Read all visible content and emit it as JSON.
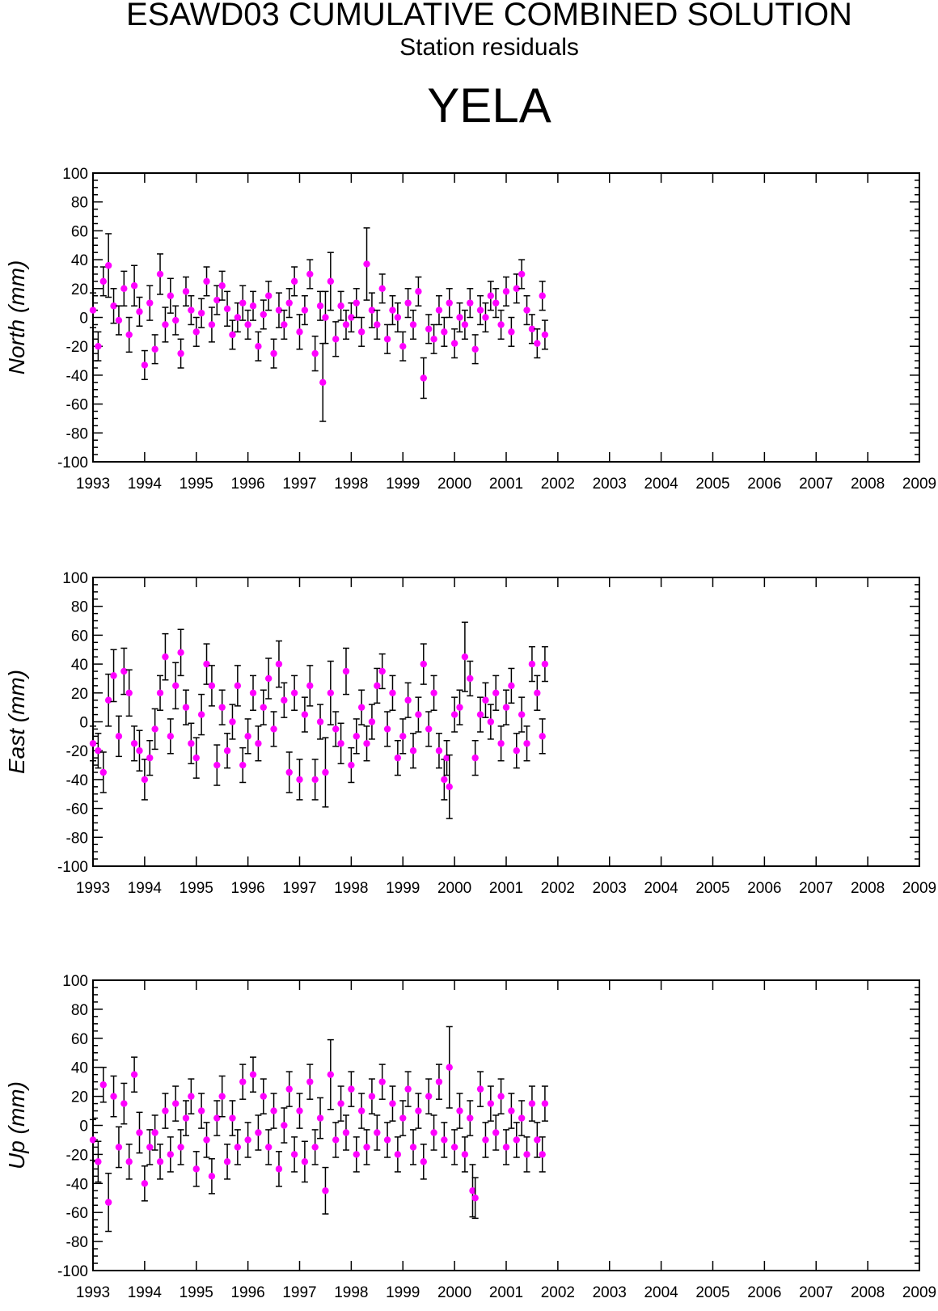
{
  "header": {
    "title": "ESAWD03 CUMULATIVE COMBINED SOLUTION",
    "subtitle": "Station residuals",
    "station": "YELA"
  },
  "chart_data": [
    {
      "type": "scatter",
      "ylabel": "North (mm)",
      "xlim": [
        1993,
        2009
      ],
      "ylim": [
        -100,
        100
      ],
      "x_ticks": [
        "1993",
        "1994",
        "1995",
        "1996",
        "1997",
        "1998",
        "1999",
        "2000",
        "2001",
        "2002",
        "2003",
        "2004",
        "2005",
        "2006",
        "2007",
        "2008",
        "2009"
      ],
      "y_ticks": [
        "100",
        "80",
        "60",
        "40",
        "20",
        "0",
        "-20",
        "-40",
        "-60",
        "-80",
        "-100"
      ],
      "marker_color": "#ff00ff",
      "errorbar_color": "#000000",
      "x": [
        1993.0,
        1993.1,
        1993.2,
        1993.3,
        1993.4,
        1993.5,
        1993.6,
        1993.7,
        1993.8,
        1993.9,
        1994.0,
        1994.1,
        1994.2,
        1994.3,
        1994.4,
        1994.5,
        1994.6,
        1994.7,
        1994.8,
        1994.9,
        1995.0,
        1995.1,
        1995.2,
        1995.3,
        1995.4,
        1995.5,
        1995.6,
        1995.7,
        1995.8,
        1995.9,
        1996.0,
        1996.1,
        1996.2,
        1996.3,
        1996.4,
        1996.5,
        1996.6,
        1996.7,
        1996.8,
        1996.9,
        1997.0,
        1997.1,
        1997.2,
        1997.3,
        1997.4,
        1997.45,
        1997.5,
        1997.6,
        1997.7,
        1997.8,
        1997.9,
        1998.0,
        1998.1,
        1998.2,
        1998.3,
        1998.4,
        1998.5,
        1998.6,
        1998.7,
        1998.8,
        1998.9,
        1999.0,
        1999.1,
        1999.2,
        1999.3,
        1999.4,
        1999.5,
        1999.6,
        1999.7,
        1999.8,
        1999.9,
        2000.0,
        2000.1,
        2000.2,
        2000.3,
        2000.4,
        2000.5,
        2000.6,
        2000.7,
        2000.8,
        2000.9,
        2001.0,
        2001.1,
        2001.2,
        2001.3,
        2001.4,
        2001.5,
        2001.6,
        2001.7,
        2001.75
      ],
      "y": [
        5,
        -20,
        25,
        36,
        8,
        -2,
        20,
        -12,
        22,
        4,
        -33,
        10,
        -22,
        30,
        -5,
        15,
        -2,
        -25,
        18,
        5,
        -10,
        3,
        25,
        -5,
        12,
        22,
        6,
        -12,
        0,
        10,
        -5,
        8,
        -20,
        2,
        15,
        -25,
        5,
        -5,
        10,
        25,
        -10,
        5,
        30,
        -25,
        8,
        -45,
        0,
        25,
        -15,
        8,
        -5,
        0,
        10,
        -10,
        37,
        5,
        -5,
        20,
        -15,
        5,
        0,
        -20,
        10,
        -5,
        18,
        -42,
        -8,
        -15,
        5,
        -10,
        10,
        -18,
        0,
        -5,
        10,
        -22,
        5,
        0,
        15,
        10,
        -5,
        18,
        -10,
        20,
        30,
        5,
        -8,
        -18,
        15,
        -12
      ],
      "y_err": [
        12,
        10,
        10,
        22,
        12,
        10,
        12,
        12,
        14,
        10,
        10,
        12,
        10,
        14,
        12,
        12,
        10,
        10,
        10,
        10,
        10,
        10,
        10,
        12,
        10,
        10,
        12,
        10,
        10,
        12,
        10,
        10,
        10,
        10,
        10,
        10,
        12,
        10,
        10,
        10,
        12,
        10,
        10,
        12,
        10,
        27,
        18,
        20,
        12,
        10,
        10,
        10,
        10,
        10,
        25,
        12,
        10,
        10,
        10,
        10,
        10,
        10,
        10,
        10,
        10,
        14,
        10,
        10,
        10,
        10,
        10,
        10,
        10,
        10,
        10,
        10,
        10,
        10,
        10,
        10,
        10,
        10,
        10,
        10,
        10,
        10,
        10,
        10,
        10,
        10
      ]
    },
    {
      "type": "scatter",
      "ylabel": "East (mm)",
      "xlim": [
        1993,
        2009
      ],
      "ylim": [
        -100,
        100
      ],
      "x_ticks": [
        "1993",
        "1994",
        "1995",
        "1996",
        "1997",
        "1998",
        "1999",
        "2000",
        "2001",
        "2002",
        "2003",
        "2004",
        "2005",
        "2006",
        "2007",
        "2008",
        "2009"
      ],
      "y_ticks": [
        "100",
        "80",
        "60",
        "40",
        "20",
        "0",
        "-20",
        "-40",
        "-60",
        "-80",
        "-100"
      ],
      "marker_color": "#ff00ff",
      "errorbar_color": "#000000",
      "x": [
        1993.0,
        1993.1,
        1993.2,
        1993.3,
        1993.4,
        1993.5,
        1993.6,
        1993.7,
        1993.8,
        1993.9,
        1994.0,
        1994.1,
        1994.2,
        1994.3,
        1994.4,
        1994.5,
        1994.6,
        1994.7,
        1994.8,
        1994.9,
        1995.0,
        1995.1,
        1995.2,
        1995.3,
        1995.4,
        1995.5,
        1995.6,
        1995.7,
        1995.8,
        1995.9,
        1996.0,
        1996.1,
        1996.2,
        1996.3,
        1996.4,
        1996.5,
        1996.6,
        1996.7,
        1996.8,
        1996.9,
        1997.0,
        1997.1,
        1997.2,
        1997.3,
        1997.4,
        1997.5,
        1997.6,
        1997.7,
        1997.8,
        1997.9,
        1998.0,
        1998.1,
        1998.2,
        1998.3,
        1998.4,
        1998.5,
        1998.6,
        1998.7,
        1998.8,
        1998.9,
        1999.0,
        1999.1,
        1999.2,
        1999.3,
        1999.4,
        1999.5,
        1999.6,
        1999.7,
        1999.8,
        1999.85,
        1999.9,
        2000.0,
        2000.1,
        2000.2,
        2000.3,
        2000.4,
        2000.5,
        2000.6,
        2000.7,
        2000.8,
        2000.9,
        2001.0,
        2001.1,
        2001.2,
        2001.3,
        2001.4,
        2001.5,
        2001.6,
        2001.7,
        2001.75
      ],
      "y": [
        -15,
        -20,
        -35,
        15,
        32,
        -10,
        35,
        20,
        -15,
        -20,
        -40,
        -25,
        -5,
        20,
        45,
        -10,
        25,
        48,
        10,
        -15,
        -25,
        5,
        40,
        25,
        -30,
        10,
        -20,
        0,
        25,
        -30,
        -10,
        20,
        -15,
        10,
        30,
        -5,
        40,
        15,
        -35,
        20,
        -40,
        5,
        25,
        -40,
        0,
        -35,
        20,
        -5,
        -15,
        35,
        -30,
        -10,
        10,
        -15,
        0,
        25,
        35,
        -5,
        20,
        -25,
        -10,
        15,
        -20,
        5,
        40,
        -5,
        20,
        -20,
        -40,
        -25,
        -45,
        5,
        10,
        45,
        30,
        -25,
        5,
        15,
        0,
        20,
        -15,
        10,
        25,
        -20,
        5,
        -15,
        40,
        20,
        -10,
        40
      ],
      "y_err": [
        12,
        12,
        14,
        18,
        18,
        14,
        16,
        16,
        12,
        14,
        14,
        12,
        14,
        12,
        16,
        12,
        16,
        16,
        12,
        14,
        14,
        14,
        14,
        14,
        14,
        12,
        12,
        12,
        14,
        12,
        12,
        12,
        12,
        12,
        14,
        12,
        16,
        12,
        14,
        12,
        14,
        12,
        14,
        14,
        12,
        24,
        22,
        12,
        14,
        16,
        12,
        12,
        12,
        12,
        12,
        12,
        12,
        12,
        12,
        12,
        12,
        12,
        12,
        12,
        14,
        12,
        12,
        12,
        14,
        12,
        22,
        12,
        12,
        24,
        12,
        12,
        12,
        12,
        12,
        12,
        12,
        12,
        12,
        12,
        12,
        12,
        12,
        12,
        12,
        12
      ]
    },
    {
      "type": "scatter",
      "ylabel": "Up (mm)",
      "xlim": [
        1993,
        2009
      ],
      "ylim": [
        -100,
        100
      ],
      "x_ticks": [
        "1993",
        "1994",
        "1995",
        "1996",
        "1997",
        "1998",
        "1999",
        "2000",
        "2001",
        "2002",
        "2003",
        "2004",
        "2005",
        "2006",
        "2007",
        "2008",
        "2009"
      ],
      "y_ticks": [
        "100",
        "80",
        "60",
        "40",
        "20",
        "0",
        "-20",
        "-40",
        "-60",
        "-80",
        "-100"
      ],
      "marker_color": "#ff00ff",
      "errorbar_color": "#000000",
      "x": [
        1993.0,
        1993.1,
        1993.2,
        1993.3,
        1993.4,
        1993.5,
        1993.6,
        1993.7,
        1993.8,
        1993.9,
        1994.0,
        1994.1,
        1994.2,
        1994.3,
        1994.4,
        1994.5,
        1994.6,
        1994.7,
        1994.8,
        1994.9,
        1995.0,
        1995.1,
        1995.2,
        1995.3,
        1995.4,
        1995.5,
        1995.6,
        1995.7,
        1995.8,
        1995.9,
        1996.0,
        1996.1,
        1996.2,
        1996.3,
        1996.4,
        1996.5,
        1996.6,
        1996.7,
        1996.8,
        1996.9,
        1997.0,
        1997.1,
        1997.2,
        1997.3,
        1997.4,
        1997.5,
        1997.6,
        1997.7,
        1997.8,
        1997.9,
        1998.0,
        1998.1,
        1998.2,
        1998.3,
        1998.4,
        1998.5,
        1998.6,
        1998.7,
        1998.8,
        1998.9,
        1999.0,
        1999.1,
        1999.2,
        1999.3,
        1999.4,
        1999.5,
        1999.6,
        1999.7,
        1999.8,
        1999.9,
        2000.0,
        2000.1,
        2000.2,
        2000.3,
        2000.35,
        2000.4,
        2000.5,
        2000.6,
        2000.7,
        2000.8,
        2000.9,
        2001.0,
        2001.1,
        2001.2,
        2001.3,
        2001.4,
        2001.5,
        2001.6,
        2001.7,
        2001.75
      ],
      "y": [
        -10,
        -25,
        28,
        -53,
        20,
        -15,
        15,
        -25,
        35,
        -5,
        -40,
        -15,
        -5,
        -25,
        10,
        -20,
        15,
        -15,
        5,
        20,
        -30,
        10,
        -10,
        -35,
        5,
        20,
        -25,
        5,
        -15,
        30,
        -10,
        35,
        -5,
        20,
        -15,
        10,
        -30,
        0,
        25,
        -20,
        10,
        -25,
        30,
        -15,
        5,
        -45,
        35,
        -10,
        15,
        -5,
        25,
        -20,
        10,
        -15,
        20,
        -5,
        30,
        -10,
        15,
        -20,
        5,
        25,
        -15,
        10,
        -25,
        20,
        -5,
        30,
        -10,
        40,
        -15,
        10,
        -20,
        5,
        -45,
        -50,
        25,
        -10,
        15,
        -5,
        20,
        -15,
        10,
        -10,
        5,
        -20,
        15,
        -10,
        -20,
        15
      ],
      "y_err": [
        14,
        14,
        12,
        20,
        14,
        14,
        14,
        12,
        12,
        14,
        12,
        12,
        12,
        12,
        12,
        12,
        12,
        12,
        12,
        12,
        12,
        12,
        12,
        12,
        12,
        14,
        12,
        12,
        12,
        12,
        12,
        12,
        12,
        12,
        12,
        12,
        12,
        12,
        12,
        12,
        12,
        14,
        12,
        12,
        14,
        16,
        24,
        12,
        12,
        12,
        12,
        12,
        12,
        12,
        12,
        12,
        12,
        12,
        12,
        12,
        12,
        12,
        12,
        12,
        12,
        12,
        12,
        12,
        12,
        28,
        12,
        12,
        12,
        12,
        18,
        14,
        12,
        12,
        12,
        12,
        12,
        12,
        12,
        12,
        12,
        12,
        12,
        12,
        12,
        12
      ]
    }
  ]
}
